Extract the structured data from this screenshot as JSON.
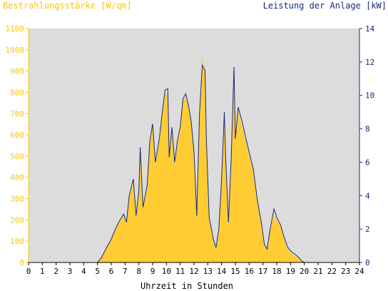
{
  "chart_data": {
    "type": "area",
    "title_left": "Bestrahlungsstärke [W/qm]",
    "title_right": "Leistung der Anlage [kW]",
    "xlabel": "Uhrzeit in Stunden",
    "xlim": [
      0,
      24
    ],
    "ylim_left": [
      0,
      1100
    ],
    "ylim_right": [
      0,
      14
    ],
    "x_ticks": [
      0,
      1,
      2,
      3,
      4,
      5,
      6,
      7,
      8,
      9,
      10,
      11,
      12,
      13,
      14,
      15,
      16,
      17,
      18,
      19,
      20,
      21,
      22,
      23,
      24
    ],
    "left_ticks": [
      0,
      100,
      200,
      300,
      400,
      500,
      600,
      700,
      800,
      900,
      1000,
      1100
    ],
    "right_ticks": [
      0,
      2,
      4,
      6,
      8,
      10,
      12,
      14
    ],
    "colors": {
      "plot_bg": "#dcdcdc",
      "irradiance": "#ffcc33",
      "power": "#1a2a7a",
      "left_axis": "#f5c518",
      "right_axis": "#1a2a7a"
    },
    "series": [
      {
        "name": "Bestrahlungsstärke [W/qm]",
        "axis": "left",
        "x": [
          0,
          5,
          5.3,
          5.6,
          6.0,
          6.3,
          6.6,
          6.9,
          7.1,
          7.3,
          7.6,
          7.8,
          8.0,
          8.1,
          8.3,
          8.6,
          8.8,
          9.0,
          9.2,
          9.5,
          9.7,
          9.9,
          10.1,
          10.2,
          10.4,
          10.6,
          10.8,
          11.0,
          11.2,
          11.4,
          11.6,
          11.8,
          12.0,
          12.2,
          12.4,
          12.6,
          12.8,
          12.9,
          13.1,
          13.4,
          13.6,
          13.8,
          14.0,
          14.2,
          14.3,
          14.5,
          14.7,
          14.9,
          15.0,
          15.2,
          15.5,
          15.8,
          16.0,
          16.3,
          16.6,
          16.9,
          17.1,
          17.3,
          17.5,
          17.8,
          18.0,
          18.3,
          18.5,
          18.8,
          19.0,
          19.3,
          19.6,
          19.8,
          20.0,
          24
        ],
        "y": [
          0,
          0,
          20,
          60,
          110,
          150,
          190,
          220,
          180,
          310,
          380,
          200,
          330,
          520,
          250,
          350,
          560,
          640,
          450,
          580,
          700,
          790,
          800,
          480,
          620,
          450,
          560,
          620,
          760,
          780,
          730,
          650,
          500,
          210,
          690,
          960,
          890,
          560,
          200,
          100,
          70,
          150,
          380,
          650,
          470,
          180,
          480,
          900,
          560,
          710,
          640,
          560,
          500,
          430,
          280,
          170,
          80,
          60,
          140,
          230,
          200,
          170,
          120,
          60,
          50,
          30,
          20,
          10,
          0,
          0
        ]
      },
      {
        "name": "Leistung der Anlage [kW]",
        "axis": "right",
        "x": [
          0,
          5,
          5.3,
          5.6,
          6.0,
          6.3,
          6.6,
          6.9,
          7.1,
          7.3,
          7.6,
          7.8,
          8.0,
          8.1,
          8.3,
          8.6,
          8.8,
          9.0,
          9.2,
          9.5,
          9.7,
          9.9,
          10.1,
          10.2,
          10.4,
          10.6,
          10.8,
          11.0,
          11.2,
          11.4,
          11.6,
          11.8,
          12.0,
          12.2,
          12.4,
          12.6,
          12.8,
          12.9,
          13.1,
          13.4,
          13.6,
          13.8,
          14.0,
          14.2,
          14.3,
          14.5,
          14.7,
          14.9,
          15.0,
          15.2,
          15.5,
          15.8,
          16.0,
          16.3,
          16.6,
          16.9,
          17.1,
          17.3,
          17.5,
          17.8,
          18.0,
          18.3,
          18.5,
          18.8,
          19.0,
          19.3,
          19.6,
          19.8,
          20.0,
          24
        ],
        "y": [
          0,
          0,
          0.3,
          0.8,
          1.4,
          2.0,
          2.5,
          2.9,
          2.4,
          4.0,
          5.0,
          2.8,
          4.3,
          6.9,
          3.3,
          4.6,
          7.3,
          8.3,
          6.0,
          7.5,
          9.0,
          10.3,
          10.4,
          6.3,
          8.1,
          6.0,
          7.3,
          8.1,
          9.8,
          10.1,
          9.4,
          8.4,
          6.6,
          2.8,
          8.9,
          11.8,
          11.5,
          7.3,
          2.7,
          1.4,
          0.9,
          2.0,
          5.0,
          9.0,
          6.2,
          2.4,
          6.3,
          11.7,
          7.4,
          9.3,
          8.4,
          7.3,
          6.6,
          5.6,
          3.7,
          2.3,
          1.1,
          0.8,
          1.9,
          3.2,
          2.7,
          2.2,
          1.6,
          0.9,
          0.7,
          0.5,
          0.3,
          0.1,
          0,
          0
        ]
      }
    ]
  }
}
